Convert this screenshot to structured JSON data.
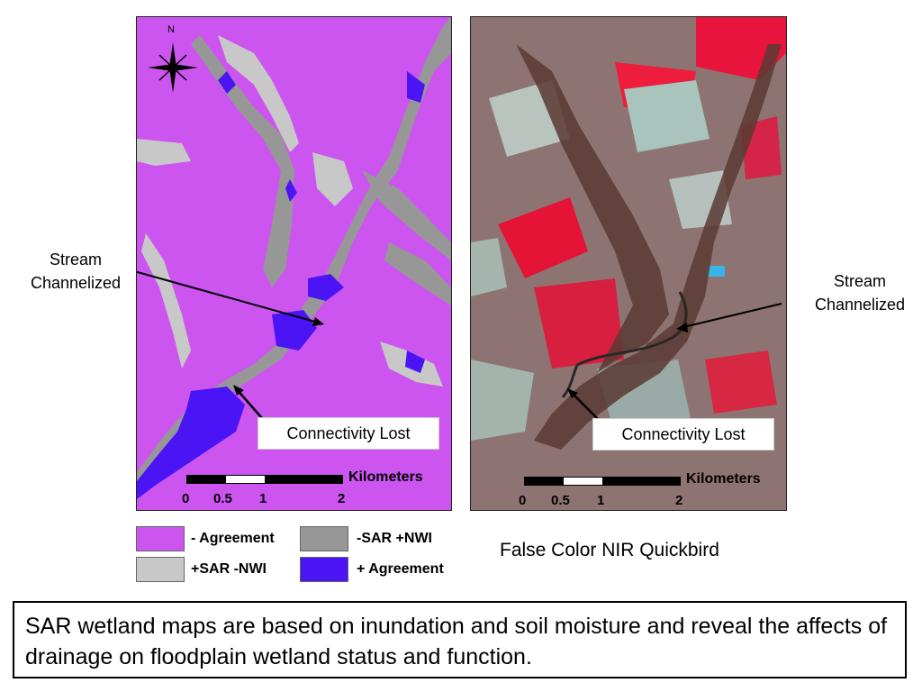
{
  "left_map": {
    "north": "N",
    "scale": {
      "unit": "Kilometers",
      "ticks": [
        "0",
        "0.5",
        "1",
        "2"
      ]
    },
    "callouts": {
      "stream": "Stream\nChannelized",
      "connectivity": "Connectivity Lost"
    }
  },
  "right_map": {
    "title": "False Color NIR Quickbird",
    "scale": {
      "unit": "Kilometers",
      "ticks": [
        "0",
        "0.5",
        "1",
        "2"
      ]
    },
    "callouts": {
      "stream": "Stream\nChannelized",
      "connectivity": "Connectivity Lost"
    }
  },
  "legend": [
    {
      "label": "- Agreement",
      "color": "#cc55f0"
    },
    {
      "label": "-SAR +NWI",
      "color": "#979797"
    },
    {
      "label": "+SAR -NWI",
      "color": "#c8c8c8"
    },
    {
      "label": "+ Agreement",
      "color": "#4a14f5"
    }
  ],
  "caption": "SAR wetland maps are based on inundation and soil moisture and reveal the affects of drainage on floodplain wetland status and function."
}
